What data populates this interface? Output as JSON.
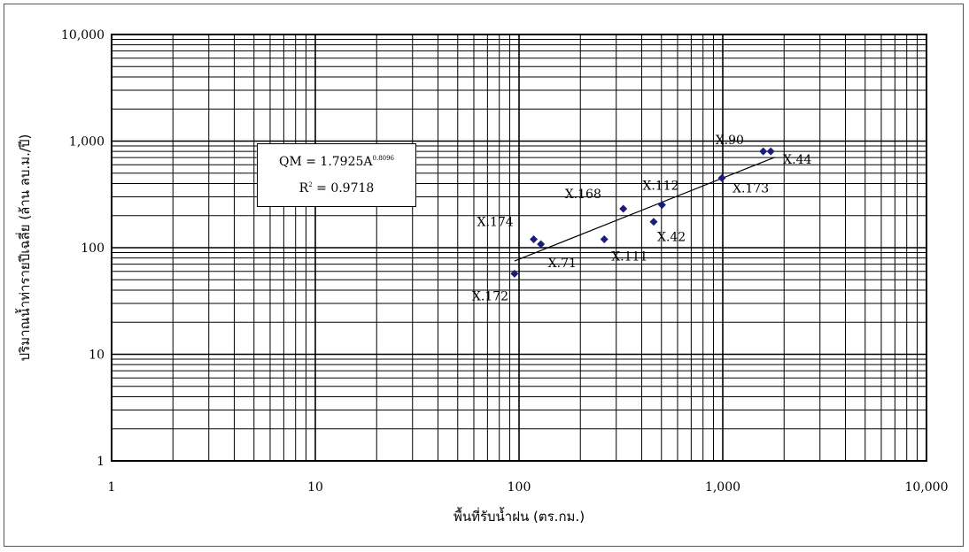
{
  "chart_data": {
    "type": "scatter",
    "xscale": "log",
    "yscale": "log",
    "xlim": [
      1,
      10000
    ],
    "ylim": [
      1,
      10000
    ],
    "grid": true,
    "xlabel": "พื้นที่รับน้ำฝน (ตร.กม.)",
    "ylabel": "ปริมาณน้ำท่ารายปีเฉลี่ย (ล้าน ลบ.ม./ปี)",
    "xticks": [
      {
        "value": 1,
        "label": "1"
      },
      {
        "value": 10,
        "label": "10"
      },
      {
        "value": 100,
        "label": "100"
      },
      {
        "value": 1000,
        "label": "1,000"
      },
      {
        "value": 10000,
        "label": "10,000"
      }
    ],
    "yticks": [
      {
        "value": 1,
        "label": "1"
      },
      {
        "value": 10,
        "label": "10"
      },
      {
        "value": 100,
        "label": "100"
      },
      {
        "value": 1000,
        "label": "1,000"
      },
      {
        "value": 10000,
        "label": "10,000"
      }
    ],
    "points": [
      {
        "label": "X.172",
        "x": 95,
        "y": 57
      },
      {
        "label": "X.174",
        "x": 118,
        "y": 120
      },
      {
        "label": "X.71",
        "x": 128,
        "y": 108
      },
      {
        "label": "X.111",
        "x": 262,
        "y": 120
      },
      {
        "label": "X.168",
        "x": 325,
        "y": 232
      },
      {
        "label": "X.42",
        "x": 458,
        "y": 175
      },
      {
        "label": "X.112",
        "x": 503,
        "y": 252
      },
      {
        "label": "X.173",
        "x": 990,
        "y": 450
      },
      {
        "label": "X.90",
        "x": 1580,
        "y": 800
      },
      {
        "label": "X.44",
        "x": 1720,
        "y": 800
      }
    ],
    "trendline": {
      "x": [
        95,
        1800
      ],
      "y": [
        75,
        705
      ]
    },
    "equation": {
      "lhs": "QM = 1.7925A",
      "exponent": "0.8096",
      "r2_label": "R",
      "r2_sup": "2",
      "r2_value": " = 0.9718"
    },
    "colors": {
      "point": "#1c1c7a",
      "grid": "#000000",
      "line": "#000000"
    }
  }
}
